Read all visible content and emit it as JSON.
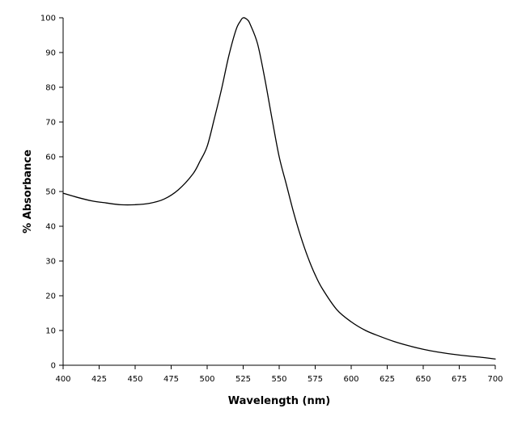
{
  "chart_data": {
    "type": "line",
    "xlabel": "Wavelength (nm)",
    "ylabel": "% Absorbance",
    "xlim": [
      400,
      700
    ],
    "ylim": [
      0,
      100
    ],
    "xticks": [
      400,
      425,
      450,
      475,
      500,
      525,
      550,
      575,
      600,
      625,
      650,
      675,
      700
    ],
    "yticks": [
      0,
      10,
      20,
      30,
      40,
      50,
      60,
      70,
      80,
      90,
      100
    ],
    "grid": false,
    "legend": "none",
    "line_color": "#000000",
    "series": [
      {
        "x": [
          400,
          410,
          420,
          430,
          440,
          450,
          460,
          470,
          480,
          490,
          495,
          500,
          505,
          510,
          515,
          520,
          523,
          525,
          528,
          530,
          535,
          540,
          545,
          550,
          555,
          560,
          565,
          570,
          575,
          580,
          590,
          600,
          610,
          620,
          630,
          640,
          650,
          660,
          670,
          680,
          690,
          700
        ],
        "y": [
          49.5,
          48.3,
          47.3,
          46.7,
          46.2,
          46.2,
          46.6,
          47.8,
          50.5,
          55.0,
          58.7,
          63.0,
          71.0,
          79.5,
          89.0,
          96.5,
          99.0,
          100,
          99.4,
          98.0,
          92.5,
          82.5,
          71.0,
          60.0,
          52.0,
          44.0,
          37.0,
          31.0,
          26.0,
          22.0,
          16.0,
          12.5,
          10.0,
          8.3,
          6.8,
          5.6,
          4.6,
          3.8,
          3.2,
          2.7,
          2.3,
          1.8
        ]
      }
    ]
  }
}
